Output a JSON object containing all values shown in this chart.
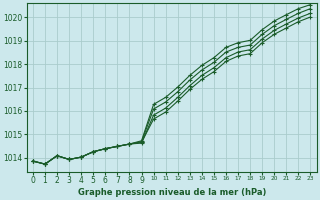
{
  "title": "Graphe pression niveau de la mer (hPa)",
  "bg_color": "#cce8ec",
  "grid_color": "#aacccc",
  "line_color": "#1a5c2a",
  "xlim": [
    -0.5,
    23.5
  ],
  "ylim": [
    1013.4,
    1020.6
  ],
  "xticks": [
    0,
    1,
    2,
    3,
    4,
    5,
    6,
    7,
    8,
    9,
    10,
    11,
    12,
    13,
    14,
    15,
    16,
    17,
    18,
    19,
    20,
    21,
    22,
    23
  ],
  "yticks": [
    1014,
    1015,
    1016,
    1017,
    1018,
    1019,
    1020
  ],
  "series": [
    [
      1013.85,
      1013.72,
      1014.08,
      1013.92,
      1014.02,
      1014.25,
      1014.38,
      1014.48,
      1014.58,
      1014.62,
      1015.82,
      1016.12,
      1016.58,
      1017.08,
      1017.52,
      1017.85,
      1018.28,
      1018.52,
      1018.62,
      1019.08,
      1019.45,
      1019.72,
      1019.98,
      1020.18
    ],
    [
      1013.85,
      1013.72,
      1014.08,
      1013.92,
      1014.02,
      1014.25,
      1014.38,
      1014.48,
      1014.58,
      1014.65,
      1015.65,
      1015.95,
      1016.42,
      1016.92,
      1017.35,
      1017.68,
      1018.12,
      1018.35,
      1018.45,
      1018.92,
      1019.28,
      1019.55,
      1019.82,
      1020.02
    ],
    [
      1013.85,
      1013.72,
      1014.08,
      1013.92,
      1014.02,
      1014.25,
      1014.38,
      1014.48,
      1014.58,
      1014.68,
      1016.08,
      1016.38,
      1016.82,
      1017.32,
      1017.75,
      1018.08,
      1018.52,
      1018.72,
      1018.82,
      1019.28,
      1019.65,
      1019.92,
      1020.18,
      1020.38
    ],
    [
      1013.85,
      1013.72,
      1014.08,
      1013.92,
      1014.02,
      1014.25,
      1014.38,
      1014.48,
      1014.58,
      1014.72,
      1016.28,
      1016.58,
      1017.02,
      1017.52,
      1017.95,
      1018.28,
      1018.72,
      1018.92,
      1019.02,
      1019.48,
      1019.85,
      1020.12,
      1020.38,
      1020.55
    ]
  ]
}
